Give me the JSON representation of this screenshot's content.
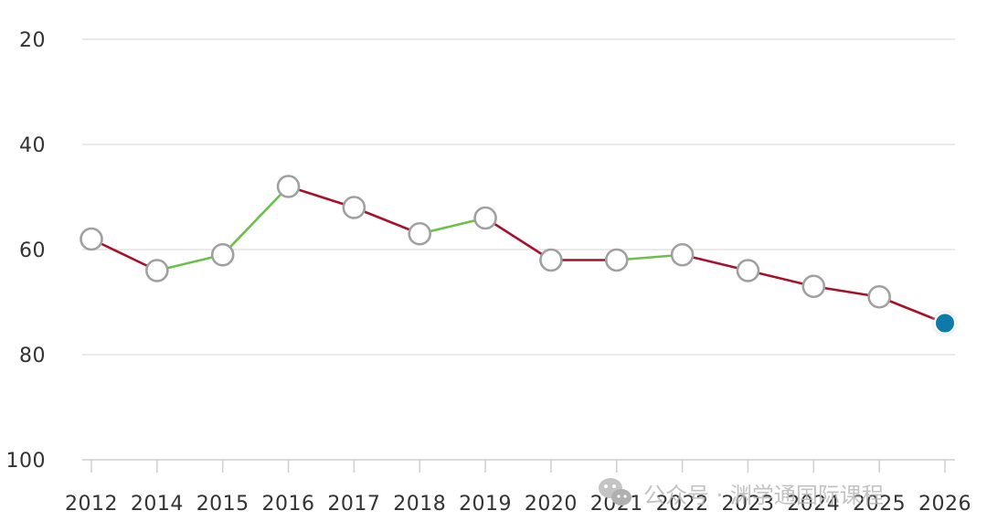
{
  "chart_data": {
    "type": "line",
    "title": "",
    "xlabel": "",
    "ylabel": "",
    "categories": [
      "2012",
      "2014",
      "2015",
      "2016",
      "2017",
      "2018",
      "2019",
      "2020",
      "2021",
      "2022",
      "2023",
      "2024",
      "2025",
      "2026"
    ],
    "series": [
      {
        "values": [
          58,
          64,
          61,
          48,
          52,
          57,
          54,
          62,
          62,
          61,
          64,
          67,
          69,
          74
        ]
      }
    ],
    "y_ticks": [
      20,
      40,
      60,
      80,
      100
    ],
    "ylim": [
      20,
      100
    ],
    "y_axis_reversed": true,
    "grid": true,
    "legend": "none",
    "colors": {
      "rise": "#6cc04a",
      "fall": "#a8102a",
      "marker_fill": "#ffffff",
      "marker_stroke": "#a0a0a0",
      "highlight_fill": "#0a7aa8",
      "grid": "#e3e3e3"
    },
    "highlighted_point": "2026"
  },
  "watermark": {
    "icon": "wechat-icon",
    "text": "公众号 · 渊学通国际课程"
  }
}
